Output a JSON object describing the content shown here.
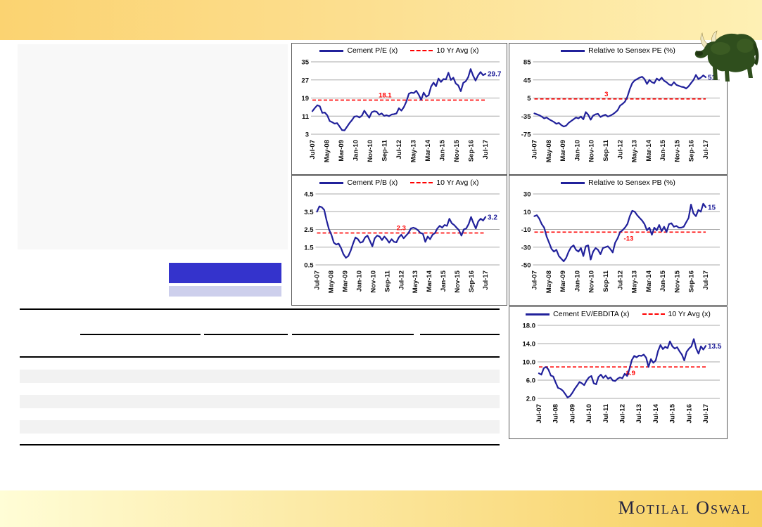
{
  "brand": {
    "logo_text": "Motilal Oswal"
  },
  "decor": {
    "top_band_gradient": [
      "#FBD371",
      "#FEF0B4"
    ],
    "bottom_band_gradient": [
      "#FFFDD6",
      "#F7CF5F"
    ],
    "panel_color": "#F8F8F8",
    "highlight_bar_dark": "#3433CC",
    "highlight_bar_light": "#CDCFEC",
    "bull_color": "#2F4E1D"
  },
  "chart_data": [
    {
      "type": "line",
      "title": "Cement P/E (x)",
      "avg_legend": "10 Yr Avg (x)",
      "line_color": "#21219B",
      "avg_color": "#FF0000",
      "ylim": [
        3,
        35
      ],
      "y_ticks": [
        "35",
        "27",
        "19",
        "11",
        "3"
      ],
      "x_tick_labels": [
        "Jul-07",
        "May-08",
        "Mar-09",
        "Jan-10",
        "Nov-10",
        "Sep-11",
        "Jul-12",
        "May-13",
        "Mar-14",
        "Jan-15",
        "Nov-15",
        "Sep-16",
        "Jul-17"
      ],
      "values": [
        13.2,
        14.6,
        15.8,
        15.4,
        12.4,
        12.6,
        11.4,
        8.8,
        8.3,
        7.7,
        7.9,
        6.4,
        4.8,
        4.7,
        6.3,
        7.9,
        9.2,
        10.8,
        11.0,
        10.4,
        11.2,
        13.4,
        11.8,
        10.3,
        12.7,
        13.2,
        12.9,
        11.6,
        12.2,
        11.1,
        11.4,
        11.0,
        11.7,
        11.9,
        12.2,
        14.5,
        13.4,
        15.0,
        17.4,
        20.9,
        21.4,
        21.2,
        22.2,
        20.5,
        18.2,
        21.4,
        19.6,
        20.2,
        24.1,
        25.8,
        24.2,
        27.6,
        26.1,
        27.4,
        27.2,
        30.2,
        27.0,
        28.0,
        25.4,
        24.6,
        22.0,
        25.7,
        26.4,
        28.2,
        31.8,
        28.9,
        26.7,
        29.0,
        30.5,
        29.1,
        29.7
      ],
      "avg_value": 18.1,
      "avg_annotation": "18.1",
      "avg_annotation_pos": "above",
      "avg_annotation_frac": 0.42,
      "end_annotation": "29.7"
    },
    {
      "type": "line",
      "title": "Relative to Sensex PE (%)",
      "avg_legend": null,
      "line_color": "#21219B",
      "avg_color": "#FF0000",
      "ylim": [
        -75,
        85
      ],
      "y_ticks": [
        "85",
        "45",
        "5",
        "-35",
        "-75"
      ],
      "x_tick_labels": [
        "Jul-07",
        "May-08",
        "Mar-09",
        "Jan-10",
        "Nov-10",
        "Sep-11",
        "Jul-12",
        "May-13",
        "Mar-14",
        "Jan-15",
        "Nov-15",
        "Sep-16",
        "Jul-17"
      ],
      "values": [
        -29,
        -31,
        -33,
        -36,
        -40,
        -38,
        -42,
        -45,
        -48,
        -52,
        -50,
        -55,
        -58,
        -56,
        -50,
        -46,
        -42,
        -38,
        -40,
        -36,
        -42,
        -26,
        -32,
        -43,
        -34,
        -31,
        -30,
        -37,
        -34,
        -32,
        -36,
        -34,
        -31,
        -27,
        -22,
        -12,
        -8,
        -3,
        8,
        25,
        38,
        44,
        47,
        50,
        52,
        47,
        36,
        45,
        40,
        38,
        48,
        44,
        50,
        43,
        40,
        35,
        33,
        40,
        34,
        32,
        30,
        29,
        26,
        31,
        38,
        45,
        56,
        47,
        50,
        55,
        51
      ],
      "avg_value": 3,
      "avg_annotation": "3",
      "avg_annotation_pos": "above",
      "avg_annotation_frac": 0.42,
      "end_annotation": "51"
    },
    {
      "type": "line",
      "title": "Cement P/B (x)",
      "avg_legend": "10 Yr Avg (x)",
      "line_color": "#21219B",
      "avg_color": "#FF0000",
      "ylim": [
        0.5,
        4.5
      ],
      "y_ticks": [
        "4.5",
        "3.5",
        "2.5",
        "1.5",
        "0.5"
      ],
      "x_tick_labels": [
        "Jul-07",
        "May-08",
        "Mar-09",
        "Jan-10",
        "Nov-10",
        "Sep-11",
        "Jul-12",
        "May-13",
        "Mar-14",
        "Jan-15",
        "Nov-15",
        "Sep-16",
        "Jul-17"
      ],
      "values": [
        3.5,
        3.8,
        3.75,
        3.6,
        3.0,
        2.5,
        2.2,
        1.75,
        1.65,
        1.7,
        1.45,
        1.1,
        0.9,
        1.0,
        1.3,
        1.7,
        2.05,
        1.95,
        1.75,
        1.8,
        2.05,
        2.15,
        1.85,
        1.55,
        2.0,
        2.15,
        2.1,
        1.9,
        2.1,
        1.95,
        1.75,
        1.95,
        1.8,
        1.77,
        2.05,
        2.2,
        2.0,
        2.15,
        2.3,
        2.55,
        2.6,
        2.55,
        2.45,
        2.3,
        2.26,
        1.8,
        2.1,
        1.95,
        2.2,
        2.3,
        2.55,
        2.7,
        2.6,
        2.75,
        2.7,
        3.1,
        2.85,
        2.75,
        2.6,
        2.45,
        2.15,
        2.5,
        2.55,
        2.8,
        3.2,
        2.85,
        2.55,
        2.95,
        3.1,
        3.0,
        3.2
      ],
      "avg_value": 2.3,
      "avg_annotation": "2.3",
      "avg_annotation_pos": "above",
      "avg_annotation_frac": 0.5,
      "end_annotation": "3.2"
    },
    {
      "type": "line",
      "title": "Relative to Sensex PB (%)",
      "avg_legend": null,
      "line_color": "#21219B",
      "avg_color": "#FF0000",
      "ylim": [
        -50,
        30
      ],
      "y_ticks": [
        "30",
        "10",
        "-10",
        "-30",
        "-50"
      ],
      "x_tick_labels": [
        "Jul-07",
        "May-08",
        "Mar-09",
        "Jan-10",
        "Nov-10",
        "Sep-11",
        "Jul-12",
        "May-13",
        "Mar-14",
        "Jan-15",
        "Nov-15",
        "Sep-16",
        "Jul-17"
      ],
      "values": [
        5,
        6,
        2,
        -4,
        -8,
        -18,
        -25,
        -32,
        -35,
        -33,
        -40,
        -43,
        -46,
        -42,
        -35,
        -30,
        -28,
        -33,
        -35,
        -31,
        -40,
        -29,
        -28,
        -44,
        -35,
        -31,
        -33,
        -38,
        -31,
        -30,
        -29,
        -32,
        -36,
        -25,
        -20,
        -13,
        -11,
        -8,
        -4,
        5,
        11,
        10,
        6,
        3,
        0,
        -4,
        -11,
        -8,
        -16,
        -8,
        -11,
        -5,
        -12,
        -7,
        -13,
        -4,
        -3,
        -7,
        -6,
        -8,
        -8,
        -7,
        -2,
        3,
        18,
        8,
        5,
        12,
        10,
        19,
        15
      ],
      "avg_value": -13,
      "avg_annotation": "-13",
      "avg_annotation_pos": "below",
      "avg_annotation_frac": 0.55,
      "end_annotation": "15"
    },
    {
      "type": "line",
      "title": "Cement EV/EBDITA (x)",
      "avg_legend": "10 Yr Avg (x)",
      "line_color": "#21219B",
      "avg_color": "#FF0000",
      "ylim": [
        2,
        18
      ],
      "y_ticks": [
        "18.0",
        "14.0",
        "10.0",
        "6.0",
        "2.0"
      ],
      "x_tick_labels": [
        "Jul-07",
        "Jul-08",
        "Jul-09",
        "Jul-10",
        "Jul-11",
        "Jul-12",
        "Jul-13",
        "Jul-14",
        "Jul-15",
        "Jul-16",
        "Jul-17"
      ],
      "values": [
        7.5,
        7.2,
        8.6,
        8.9,
        8.3,
        7.0,
        6.8,
        5.5,
        4.3,
        4.1,
        3.7,
        3.0,
        2.2,
        2.5,
        3.2,
        4.1,
        4.8,
        5.6,
        5.3,
        4.9,
        5.9,
        6.6,
        6.9,
        5.3,
        5.1,
        6.7,
        7.2,
        6.5,
        7.0,
        6.3,
        6.6,
        5.9,
        5.8,
        6.3,
        6.6,
        6.4,
        7.4,
        6.9,
        8.5,
        10.4,
        11.3,
        11.0,
        11.4,
        11.3,
        11.6,
        10.9,
        8.9,
        10.6,
        9.8,
        10.3,
        12.4,
        13.7,
        12.8,
        13.3,
        13.0,
        14.5,
        13.4,
        12.9,
        13.2,
        12.3,
        11.6,
        10.3,
        12.2,
        12.9,
        13.4,
        15.0,
        12.9,
        11.8,
        13.4,
        12.7,
        13.5
      ],
      "avg_value": 8.9,
      "avg_annotation": "8.9",
      "avg_annotation_pos": "below",
      "avg_annotation_frac": 0.55,
      "end_annotation": "13.5"
    }
  ]
}
